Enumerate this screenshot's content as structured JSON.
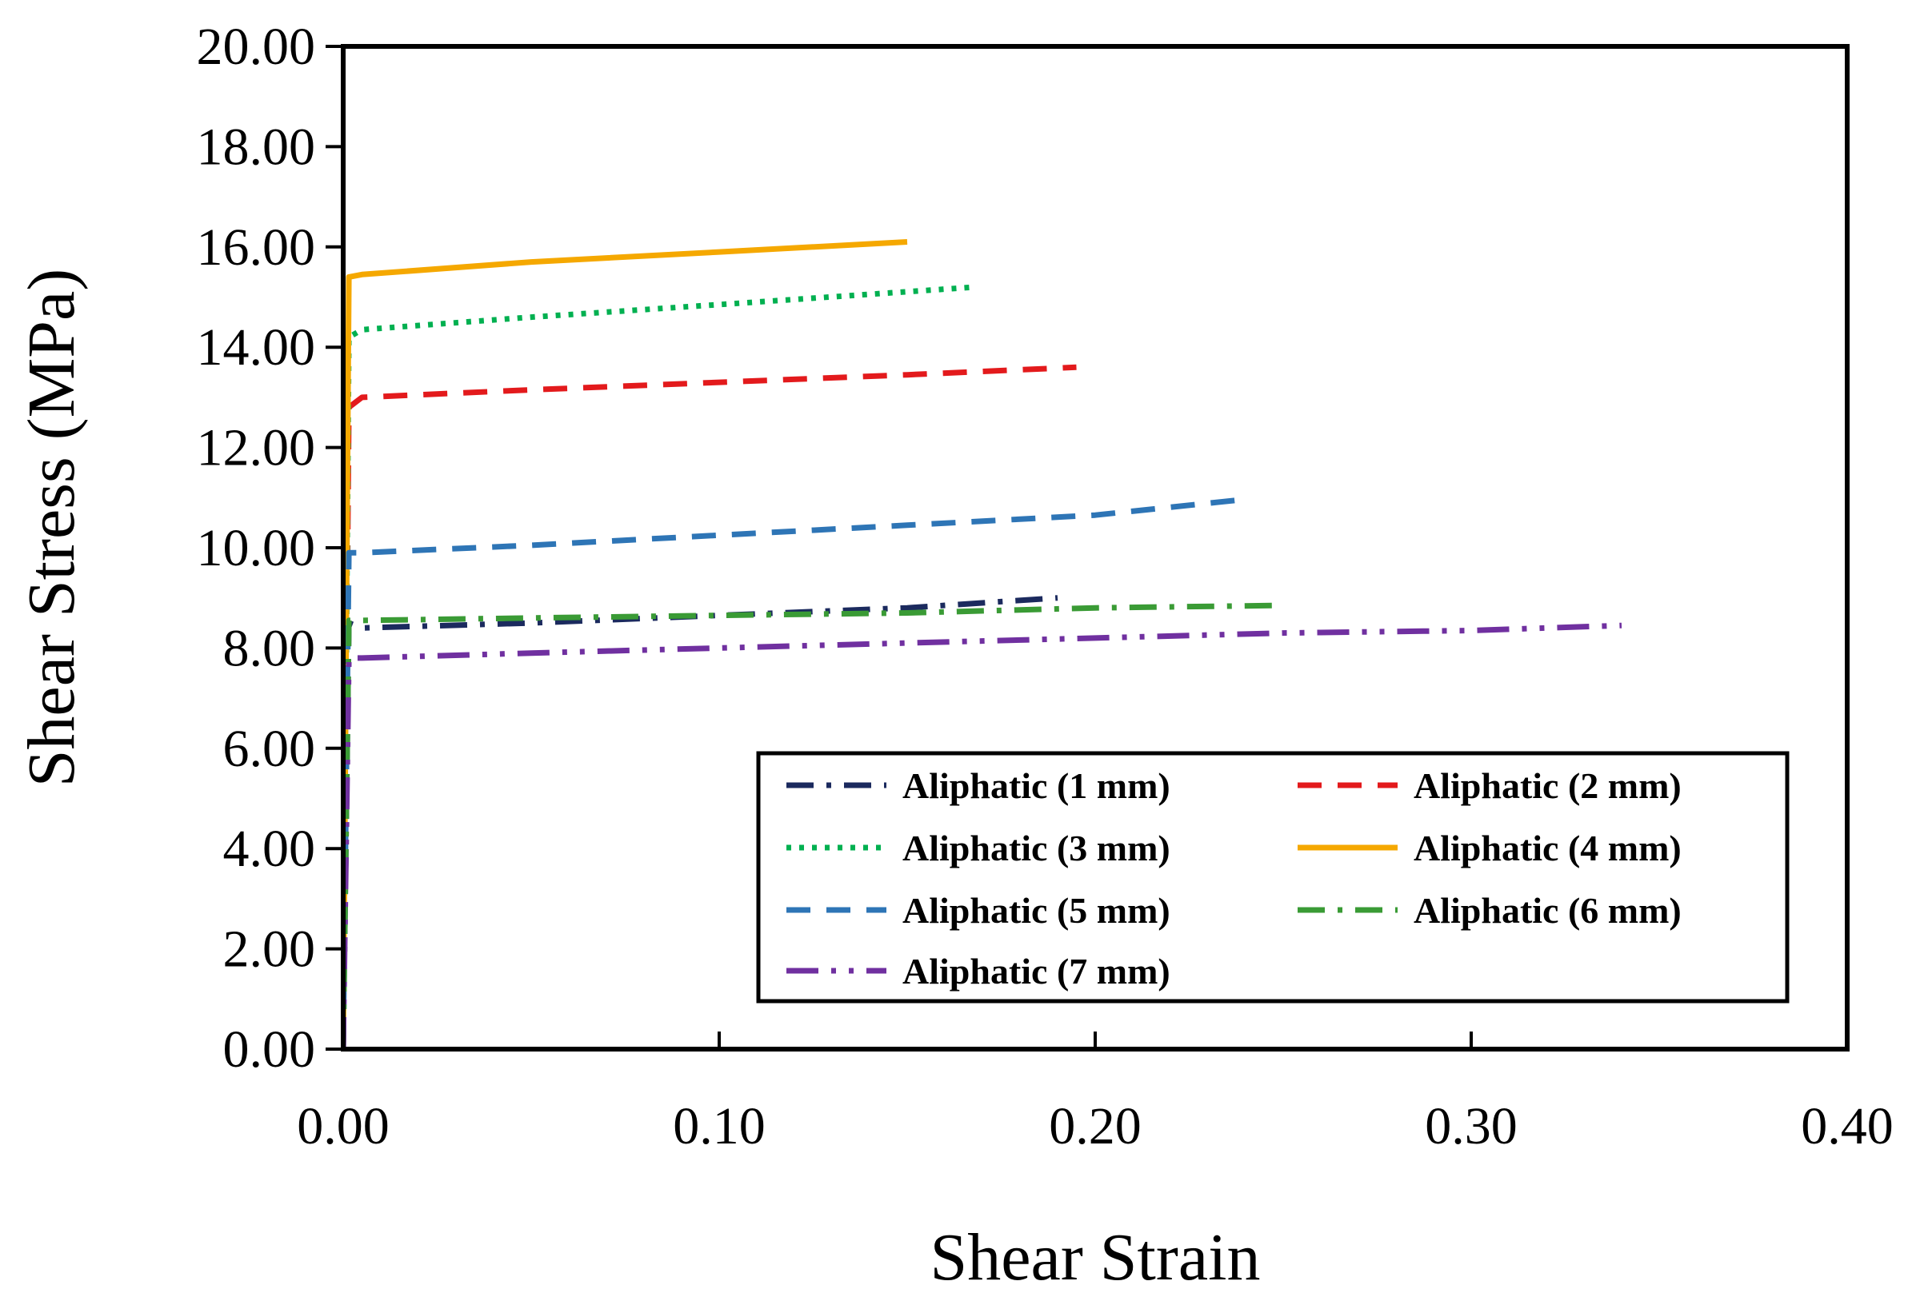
{
  "chart_data": {
    "type": "line",
    "title": "",
    "xlabel": "Shear Strain",
    "ylabel": "Shear Stress (MPa)",
    "xlim": [
      0,
      0.4
    ],
    "ylim": [
      0,
      20
    ],
    "xticks": [
      0,
      0.1,
      0.2,
      0.3,
      0.4
    ],
    "xtick_labels": [
      "0.00",
      "0.10",
      "0.20",
      "0.30",
      "0.40"
    ],
    "yticks": [
      0,
      2,
      4,
      6,
      8,
      10,
      12,
      14,
      16,
      18,
      20
    ],
    "ytick_labels": [
      "0.00",
      "2.00",
      "4.00",
      "6.00",
      "8.00",
      "10.00",
      "12.00",
      "14.00",
      "16.00",
      "18.00",
      "20.00"
    ],
    "grid": false,
    "legend_position": "bottom-right",
    "series": [
      {
        "name": "Aliphatic (1 mm)",
        "color": "#1b2a5e",
        "dash": "dashdot",
        "x": [
          0,
          0.0015,
          0.005,
          0.05,
          0.1,
          0.15,
          0.19
        ],
        "y": [
          0,
          8.5,
          8.4,
          8.5,
          8.65,
          8.8,
          9.0
        ]
      },
      {
        "name": "Aliphatic (2 mm)",
        "color": "#e31a1c",
        "dash": "dash",
        "x": [
          0,
          0.0015,
          0.005,
          0.05,
          0.1,
          0.15,
          0.195
        ],
        "y": [
          0,
          12.8,
          13.0,
          13.15,
          13.3,
          13.45,
          13.6
        ]
      },
      {
        "name": "Aliphatic (3 mm)",
        "color": "#00b050",
        "dash": "dot",
        "x": [
          0,
          0.0015,
          0.005,
          0.05,
          0.1,
          0.168
        ],
        "y": [
          0,
          14.2,
          14.35,
          14.6,
          14.85,
          15.2
        ]
      },
      {
        "name": "Aliphatic (4 mm)",
        "color": "#f5a800",
        "dash": "solid",
        "x": [
          0,
          0.0015,
          0.005,
          0.05,
          0.1,
          0.15
        ],
        "y": [
          0,
          15.4,
          15.45,
          15.7,
          15.9,
          16.1
        ]
      },
      {
        "name": "Aliphatic (5 mm)",
        "color": "#2e75b6",
        "dash": "dash",
        "x": [
          0,
          0.0015,
          0.005,
          0.05,
          0.1,
          0.15,
          0.2,
          0.238
        ],
        "y": [
          0,
          9.9,
          9.9,
          10.05,
          10.25,
          10.45,
          10.65,
          10.95
        ]
      },
      {
        "name": "Aliphatic (6 mm)",
        "color": "#3a9b35",
        "dash": "dashdot",
        "x": [
          0,
          0.0015,
          0.005,
          0.05,
          0.1,
          0.15,
          0.2,
          0.25
        ],
        "y": [
          0,
          8.55,
          8.55,
          8.6,
          8.65,
          8.7,
          8.8,
          8.85
        ]
      },
      {
        "name": "Aliphatic (7 mm)",
        "color": "#7030a0",
        "dash": "dashdotdot",
        "x": [
          0,
          0.0015,
          0.005,
          0.05,
          0.1,
          0.15,
          0.2,
          0.25,
          0.3,
          0.34
        ],
        "y": [
          0,
          7.8,
          7.8,
          7.9,
          8.0,
          8.1,
          8.2,
          8.3,
          8.35,
          8.45
        ]
      }
    ]
  }
}
